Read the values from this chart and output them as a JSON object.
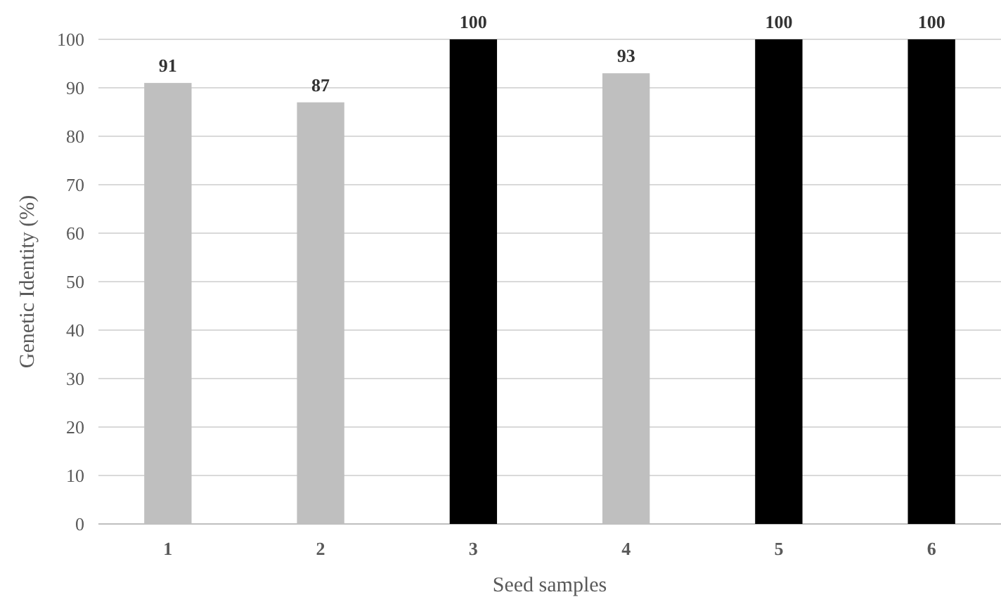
{
  "chart_data": {
    "type": "bar",
    "xlabel": "Seed samples",
    "ylabel": "Genetic Identity (%)",
    "categories": [
      "1",
      "2",
      "3",
      "4",
      "5",
      "6"
    ],
    "values": [
      91,
      87,
      100,
      93,
      100,
      100
    ],
    "colors": [
      "#bfbfbf",
      "#bfbfbf",
      "#000000",
      "#bfbfbf",
      "#000000",
      "#000000"
    ],
    "ylim": [
      0,
      100
    ],
    "yticks": [
      0,
      10,
      20,
      30,
      40,
      50,
      60,
      70,
      80,
      90,
      100
    ],
    "grid": "y",
    "data_labels": true
  }
}
